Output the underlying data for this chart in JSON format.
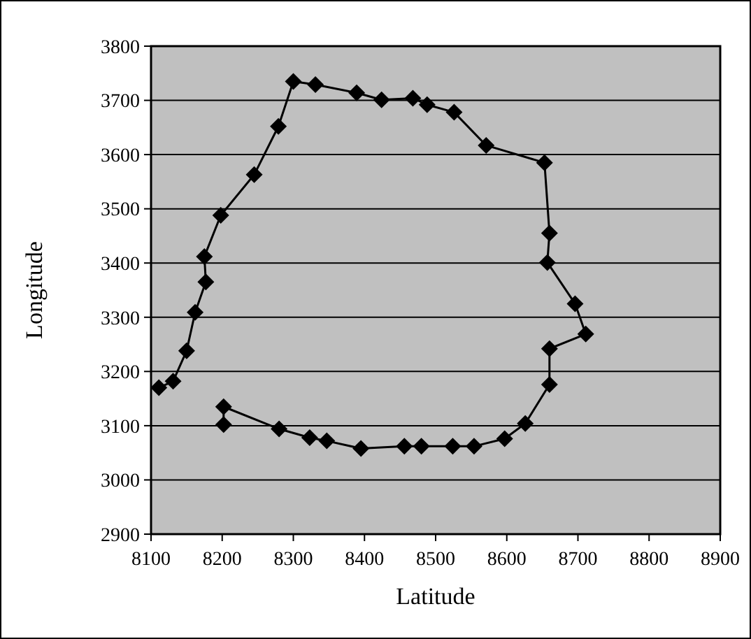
{
  "chart_data": {
    "type": "line",
    "xlabel": "Latitude",
    "ylabel": "Longitude",
    "marker": "diamond",
    "grid": "y",
    "xlim": [
      8100,
      8900
    ],
    "xticks": [
      8100,
      8200,
      8300,
      8400,
      8500,
      8600,
      8700,
      8800,
      8900
    ],
    "ylim": [
      2900,
      3800
    ],
    "yticks": [
      2900,
      3000,
      3100,
      3200,
      3300,
      3400,
      3500,
      3600,
      3700,
      3800
    ],
    "series": [
      {
        "color": "#000000",
        "x": [
          8111,
          8131,
          8150,
          8162,
          8177,
          8175,
          8198,
          8245,
          8279,
          8300,
          8331,
          8389,
          8424,
          8468,
          8488,
          8526,
          8571,
          8653,
          8660,
          8657,
          8696,
          8711,
          8660,
          8660,
          8626,
          8597,
          8554,
          8524,
          8480,
          8456,
          8395,
          8347,
          8323,
          8280,
          8202,
          8202
        ],
        "values": [
          3170,
          3182,
          3238,
          3309,
          3365,
          3412,
          3488,
          3563,
          3652,
          3735,
          3729,
          3714,
          3701,
          3704,
          3692,
          3678,
          3617,
          3585,
          3455,
          3401,
          3325,
          3269,
          3242,
          3176,
          3104,
          3076,
          3062,
          3062,
          3062,
          3062,
          3058,
          3072,
          3078,
          3094,
          3135,
          3102
        ]
      }
    ]
  }
}
